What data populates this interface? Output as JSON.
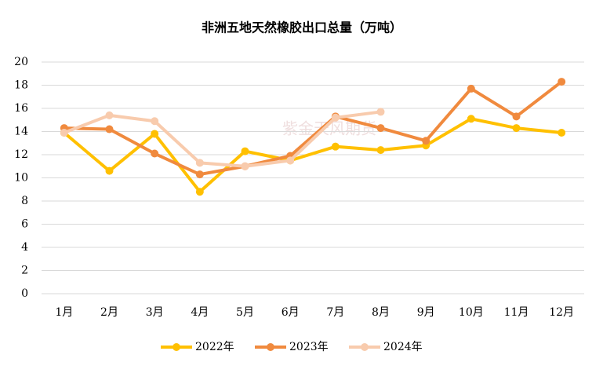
{
  "chart_data": {
    "type": "line",
    "title": "非洲五地天然橡胶出口总量（万吨）",
    "watermark": "紫金天风期货",
    "categories": [
      "1月",
      "2月",
      "3月",
      "4月",
      "5月",
      "6月",
      "7月",
      "8月",
      "9月",
      "10月",
      "11月",
      "12月"
    ],
    "series": [
      {
        "name": "2022年",
        "color": "#FFC000",
        "values": [
          13.9,
          10.6,
          13.8,
          8.8,
          12.3,
          11.5,
          12.7,
          12.4,
          12.8,
          15.1,
          14.3,
          13.9
        ]
      },
      {
        "name": "2023年",
        "color": "#F08A3E",
        "values": [
          14.3,
          14.2,
          12.1,
          10.3,
          11.0,
          11.9,
          15.3,
          14.3,
          13.2,
          17.7,
          15.3,
          18.3
        ]
      },
      {
        "name": "2024年",
        "color": "#F8CBAD",
        "values": [
          13.9,
          15.4,
          14.9,
          11.3,
          11.0,
          11.5,
          15.2,
          15.7,
          null,
          null,
          null,
          null
        ]
      }
    ],
    "ylim": [
      0,
      20
    ],
    "yticks": [
      0,
      2,
      4,
      6,
      8,
      10,
      12,
      14,
      16,
      18,
      20
    ],
    "grid": true,
    "legend": "bottom"
  }
}
